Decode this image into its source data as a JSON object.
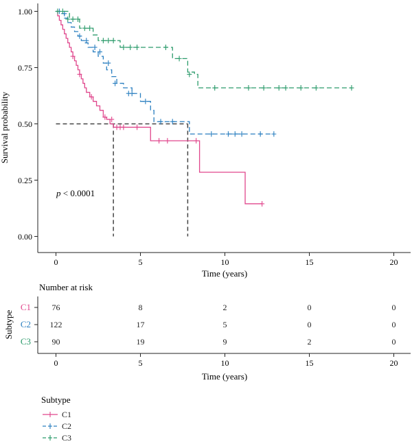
{
  "colors": {
    "C1": "#e0468c",
    "C2": "#2a7fc0",
    "C3": "#2a9a6a",
    "median": "#444444"
  },
  "km_plot": {
    "ylabel": "Survival probability",
    "xlabel": "Time (years)",
    "pvalue_prefix": "p",
    "pvalue_rest": " < 0.0001",
    "xticks": [
      "0",
      "5",
      "10",
      "15",
      "20"
    ],
    "yticks": [
      "0.00",
      "0.25",
      "0.50",
      "0.75",
      "1.00"
    ]
  },
  "risk_table": {
    "title": "Number at risk",
    "ylabel": "Subtype",
    "xlabel": "Time (years)",
    "xticks": [
      "0",
      "5",
      "10",
      "15",
      "20"
    ],
    "rows": [
      {
        "name": "C1",
        "counts": [
          "76",
          "8",
          "2",
          "0",
          "0"
        ]
      },
      {
        "name": "C2",
        "counts": [
          "122",
          "17",
          "5",
          "0",
          "0"
        ]
      },
      {
        "name": "C3",
        "counts": [
          "90",
          "19",
          "9",
          "2",
          "0"
        ]
      }
    ]
  },
  "legend": {
    "title": "Subtype",
    "items": [
      "C1",
      "C2",
      "C3"
    ]
  },
  "chart_data": {
    "type": "line",
    "title": "",
    "xlabel": "Time (years)",
    "ylabel": "Survival probability",
    "xlim": [
      0,
      20
    ],
    "ylim": [
      0,
      1
    ],
    "median_survival": {
      "C1": 3.4,
      "C2": 7.8
    },
    "series": [
      {
        "name": "C1",
        "x": [
          0,
          0.1,
          0.2,
          0.3,
          0.4,
          0.5,
          0.6,
          0.7,
          0.8,
          0.9,
          1.0,
          1.1,
          1.2,
          1.3,
          1.4,
          1.5,
          1.6,
          1.7,
          1.8,
          2.0,
          2.2,
          2.4,
          2.6,
          2.8,
          3.0,
          3.2,
          3.4,
          5.6,
          8.5,
          11.2,
          12.2
        ],
        "y": [
          1.0,
          0.98,
          0.96,
          0.94,
          0.92,
          0.9,
          0.88,
          0.86,
          0.84,
          0.82,
          0.8,
          0.78,
          0.76,
          0.74,
          0.72,
          0.7,
          0.68,
          0.66,
          0.64,
          0.62,
          0.6,
          0.58,
          0.56,
          0.53,
          0.52,
          0.5,
          0.485,
          0.425,
          0.285,
          0.145,
          0.145
        ],
        "censored": [
          [
            1.0,
            0.8
          ],
          [
            1.4,
            0.72
          ],
          [
            2.1,
            0.62
          ],
          [
            2.9,
            0.53
          ],
          [
            3.3,
            0.52
          ],
          [
            3.6,
            0.485
          ],
          [
            3.8,
            0.485
          ],
          [
            4.0,
            0.485
          ],
          [
            4.8,
            0.485
          ],
          [
            6.1,
            0.425
          ],
          [
            6.6,
            0.425
          ],
          [
            8.3,
            0.425
          ],
          [
            12.2,
            0.145
          ]
        ]
      },
      {
        "name": "C2",
        "x": [
          0,
          0.3,
          0.5,
          0.7,
          0.9,
          1.1,
          1.3,
          1.5,
          1.7,
          1.9,
          2.2,
          2.5,
          2.8,
          3.0,
          3.3,
          3.6,
          4.0,
          4.5,
          5.0,
          5.6,
          5.8,
          7.9,
          12.9
        ],
        "y": [
          1.0,
          0.99,
          0.97,
          0.95,
          0.93,
          0.91,
          0.89,
          0.87,
          0.86,
          0.84,
          0.82,
          0.8,
          0.77,
          0.74,
          0.71,
          0.68,
          0.66,
          0.635,
          0.6,
          0.56,
          0.51,
          0.455,
          0.455
        ],
        "censored": [
          [
            0.2,
            1.0
          ],
          [
            0.5,
            0.99
          ],
          [
            1.4,
            0.89
          ],
          [
            1.8,
            0.87
          ],
          [
            2.3,
            0.84
          ],
          [
            2.6,
            0.82
          ],
          [
            3.1,
            0.77
          ],
          [
            3.5,
            0.68
          ],
          [
            4.3,
            0.635
          ],
          [
            4.5,
            0.635
          ],
          [
            5.3,
            0.6
          ],
          [
            6.2,
            0.51
          ],
          [
            6.9,
            0.51
          ],
          [
            9.2,
            0.455
          ],
          [
            10.2,
            0.455
          ],
          [
            10.6,
            0.455
          ],
          [
            11.0,
            0.455
          ],
          [
            12.1,
            0.455
          ],
          [
            12.9,
            0.455
          ]
        ]
      },
      {
        "name": "C3",
        "x": [
          0,
          0.8,
          1.4,
          2.2,
          2.5,
          3.8,
          6.9,
          7.8,
          8.2,
          8.4,
          17.5
        ],
        "y": [
          1.0,
          0.965,
          0.925,
          0.895,
          0.87,
          0.84,
          0.79,
          0.73,
          0.72,
          0.66,
          0.66
        ],
        "censored": [
          [
            0.1,
            1.0
          ],
          [
            0.4,
            1.0
          ],
          [
            0.7,
            0.965
          ],
          [
            1.0,
            0.965
          ],
          [
            1.3,
            0.965
          ],
          [
            1.7,
            0.925
          ],
          [
            2.0,
            0.925
          ],
          [
            2.8,
            0.87
          ],
          [
            3.1,
            0.87
          ],
          [
            3.4,
            0.87
          ],
          [
            4.0,
            0.84
          ],
          [
            4.4,
            0.84
          ],
          [
            4.8,
            0.84
          ],
          [
            6.5,
            0.84
          ],
          [
            7.3,
            0.79
          ],
          [
            7.9,
            0.72
          ],
          [
            9.4,
            0.66
          ],
          [
            11.4,
            0.66
          ],
          [
            12.3,
            0.66
          ],
          [
            13.2,
            0.66
          ],
          [
            13.6,
            0.66
          ],
          [
            14.5,
            0.66
          ],
          [
            15.4,
            0.66
          ],
          [
            17.5,
            0.66
          ]
        ]
      }
    ]
  }
}
